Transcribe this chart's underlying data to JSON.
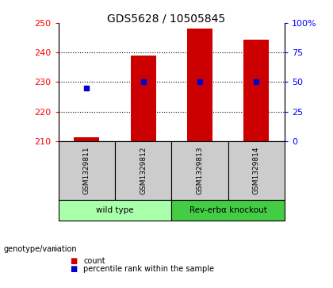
{
  "title": "GDS5628 / 10505845",
  "samples": [
    "GSM1329811",
    "GSM1329812",
    "GSM1329813",
    "GSM1329814"
  ],
  "counts": [
    211.2,
    239.0,
    248.0,
    244.5
  ],
  "percentile_vals": [
    45,
    50,
    50,
    50
  ],
  "ylim_left": [
    210,
    250
  ],
  "ylim_right": [
    0,
    100
  ],
  "yticks_left": [
    210,
    220,
    230,
    240,
    250
  ],
  "yticks_right": [
    0,
    25,
    50,
    75,
    100
  ],
  "bar_color": "#cc0000",
  "dot_color": "#0000cc",
  "groups": [
    {
      "label": "wild type",
      "indices": [
        0,
        1
      ],
      "color": "#aaffaa"
    },
    {
      "label": "Rev-erbα knockout",
      "indices": [
        2,
        3
      ],
      "color": "#44cc44"
    }
  ],
  "genotype_label": "genotype/variation",
  "legend_count": "count",
  "legend_percentile": "percentile rank within the sample",
  "background_plot": "#ffffff",
  "background_sample": "#cccccc"
}
